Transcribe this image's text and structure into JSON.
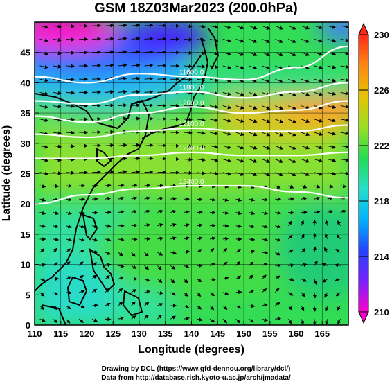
{
  "title": "GSM 18Z03Mar2023 (200.0hPa)",
  "footer": {
    "line1": "Drawing by DCL (https://www.gfd-dennou.org/library/dcl/)",
    "line2": "Data from http://database.rish.kyoto-u.ac.jp/arch/jmadata/"
  },
  "chart_data": {
    "type": "heatmap",
    "title": "GSM 18Z03Mar2023 (200.0hPa)",
    "xlabel": "Longitude (degrees)",
    "ylabel": "Latitude (degrees)",
    "xlim": [
      110,
      170
    ],
    "ylim": [
      0,
      50
    ],
    "x_ticks": [
      "110",
      "115",
      "120",
      "125",
      "130",
      "135",
      "140",
      "145",
      "150",
      "155",
      "160",
      "165"
    ],
    "y_ticks": [
      "0",
      "5",
      "10",
      "15",
      "20",
      "25",
      "30",
      "35",
      "40",
      "45"
    ],
    "colorbar": {
      "min": 210,
      "max": 230,
      "ticks": [
        "210",
        "214",
        "218",
        "222",
        "226",
        "230"
      ],
      "colors": [
        "#ff00cc",
        "#7a1fff",
        "#2244ff",
        "#00b4ff",
        "#22e0c8",
        "#22dd55",
        "#9adf22",
        "#e6c400",
        "#ff8811",
        "#ff2a1a"
      ]
    },
    "contours": [
      {
        "label": "11600.0",
        "lat_profile": [
          [
            110,
            41
          ],
          [
            120,
            40
          ],
          [
            130,
            41.5
          ],
          [
            140,
            41
          ],
          [
            150,
            40.5
          ],
          [
            160,
            42.5
          ],
          [
            170,
            46
          ]
        ]
      },
      {
        "label": "11800.0",
        "lat_profile": [
          [
            110,
            37
          ],
          [
            120,
            36.5
          ],
          [
            130,
            38
          ],
          [
            140,
            38.5
          ],
          [
            150,
            37.5
          ],
          [
            160,
            38.5
          ],
          [
            170,
            40
          ]
        ]
      },
      {
        "label": "12000.0",
        "lat_profile": [
          [
            110,
            34.5
          ],
          [
            120,
            33.5
          ],
          [
            130,
            35
          ],
          [
            140,
            36
          ],
          [
            150,
            35
          ],
          [
            160,
            35.5
          ],
          [
            170,
            37
          ]
        ]
      },
      {
        "label": "12100.0",
        "lat_profile": [
          [
            110,
            31.5
          ],
          [
            120,
            31
          ],
          [
            130,
            32
          ],
          [
            140,
            32.5
          ],
          [
            150,
            32
          ],
          [
            160,
            32
          ],
          [
            170,
            33
          ]
        ]
      },
      {
        "label": "12300.0",
        "lat_profile": [
          [
            110,
            27.5
          ],
          [
            120,
            27.5
          ],
          [
            130,
            28
          ],
          [
            140,
            28.5
          ],
          [
            150,
            28
          ],
          [
            160,
            28
          ],
          [
            170,
            28.5
          ]
        ]
      },
      {
        "label": "12400.0",
        "lat_profile": [
          [
            110,
            20
          ],
          [
            120,
            21.5
          ],
          [
            130,
            22.5
          ],
          [
            140,
            23
          ],
          [
            150,
            23
          ],
          [
            160,
            22
          ],
          [
            170,
            21
          ]
        ]
      }
    ]
  }
}
